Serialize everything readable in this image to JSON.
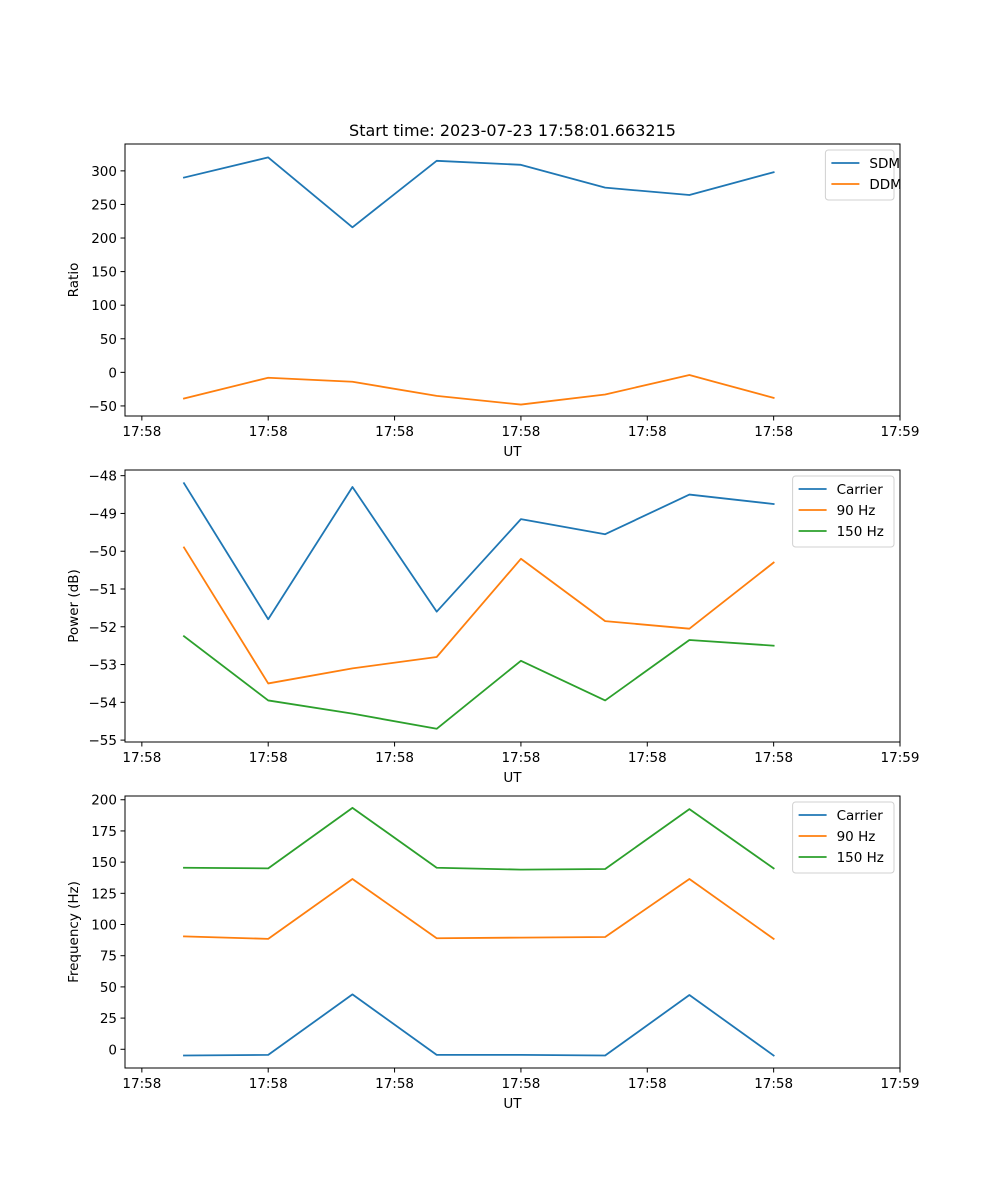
{
  "chart_data": [
    {
      "type": "line",
      "title": "Start time: 2023-07-23 17:58:01.663215",
      "xlabel": "UT",
      "ylabel": "Ratio",
      "x": [
        1,
        2,
        3,
        4,
        5,
        6,
        7,
        8
      ],
      "xlim": [
        0.3,
        9.5
      ],
      "xticks": [
        0.5,
        2,
        3.5,
        5,
        6.5,
        8,
        9.5
      ],
      "xtick_labels": [
        "17:58",
        "17:58",
        "17:58",
        "17:58",
        "17:58",
        "17:58",
        "17:59"
      ],
      "ylim": [
        -65,
        340
      ],
      "yticks": [
        -50,
        0,
        50,
        100,
        150,
        200,
        250,
        300
      ],
      "ytick_labels": [
        "−50",
        "0",
        "50",
        "100",
        "150",
        "200",
        "250",
        "300"
      ],
      "legend_position": "top-right",
      "series": [
        {
          "name": "SDM",
          "color": "#1f77b4",
          "values": [
            290,
            320,
            216,
            315,
            309,
            275,
            264,
            298
          ]
        },
        {
          "name": "DDM",
          "color": "#ff7f0e",
          "values": [
            -39,
            -8,
            -14,
            -35,
            -48,
            -33,
            -4,
            -38
          ]
        }
      ]
    },
    {
      "type": "line",
      "xlabel": "UT",
      "ylabel": "Power (dB)",
      "x": [
        1,
        2,
        3,
        4,
        5,
        6,
        7,
        8
      ],
      "xlim": [
        0.3,
        9.5
      ],
      "xticks": [
        0.5,
        2,
        3.5,
        5,
        6.5,
        8,
        9.5
      ],
      "xtick_labels": [
        "17:58",
        "17:58",
        "17:58",
        "17:58",
        "17:58",
        "17:58",
        "17:59"
      ],
      "ylim": [
        -55.05,
        -47.85
      ],
      "yticks": [
        -55,
        -54,
        -53,
        -52,
        -51,
        -50,
        -49,
        -48
      ],
      "ytick_labels": [
        "−55",
        "−54",
        "−53",
        "−52",
        "−51",
        "−50",
        "−49",
        "−48"
      ],
      "legend_position": "top-right",
      "series": [
        {
          "name": "Carrier",
          "color": "#1f77b4",
          "values": [
            -48.2,
            -51.8,
            -48.3,
            -51.6,
            -49.15,
            -49.55,
            -48.5,
            -48.75
          ]
        },
        {
          "name": "90 Hz",
          "color": "#ff7f0e",
          "values": [
            -49.9,
            -53.5,
            -53.1,
            -52.8,
            -50.2,
            -51.85,
            -52.05,
            -50.3
          ]
        },
        {
          "name": "150 Hz",
          "color": "#2ca02c",
          "values": [
            -52.25,
            -53.95,
            -54.3,
            -54.7,
            -52.9,
            -53.95,
            -52.35,
            -52.5
          ]
        }
      ]
    },
    {
      "type": "line",
      "xlabel": "UT",
      "ylabel": "Frequency (Hz)",
      "x": [
        1,
        2,
        3,
        4,
        5,
        6,
        7,
        8
      ],
      "xlim": [
        0.3,
        9.5
      ],
      "xticks": [
        0.5,
        2,
        3.5,
        5,
        6.5,
        8,
        9.5
      ],
      "xtick_labels": [
        "17:58",
        "17:58",
        "17:58",
        "17:58",
        "17:58",
        "17:58",
        "17:59"
      ],
      "ylim": [
        -15,
        203
      ],
      "yticks": [
        0,
        25,
        50,
        75,
        100,
        125,
        150,
        175,
        200
      ],
      "ytick_labels": [
        "0",
        "25",
        "50",
        "75",
        "100",
        "125",
        "150",
        "175",
        "200"
      ],
      "legend_position": "top-right",
      "series": [
        {
          "name": "Carrier",
          "color": "#1f77b4",
          "values": [
            -5,
            -4.5,
            44,
            -4.5,
            -4.5,
            -5,
            43.5,
            -5
          ]
        },
        {
          "name": "90 Hz",
          "color": "#ff7f0e",
          "values": [
            90.5,
            88.5,
            136.5,
            89,
            89.5,
            90,
            136.5,
            88.5
          ]
        },
        {
          "name": "150 Hz",
          "color": "#2ca02c",
          "values": [
            145.5,
            145,
            193.5,
            145.5,
            144,
            144.5,
            192.5,
            145
          ]
        }
      ]
    }
  ]
}
